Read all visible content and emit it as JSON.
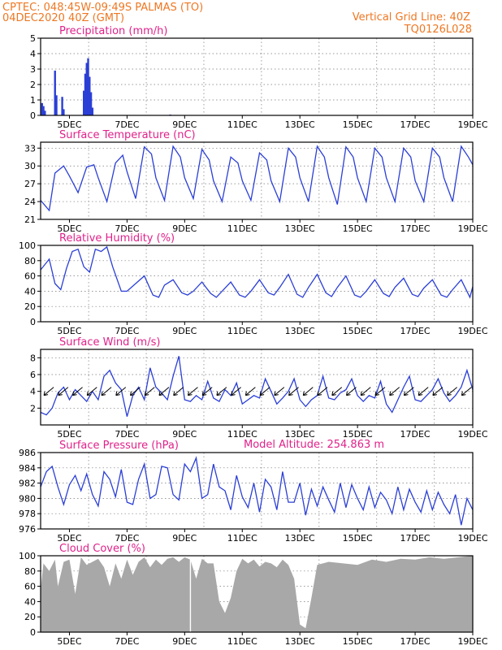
{
  "header": {
    "line1": "CPTEC:   048:45W-09:49S   PALMAS (TO)",
    "line2": "04DEC2020 40Z (GMT)",
    "grid_note": "Vertical Grid Line: 40Z",
    "code": "TQ0126L028"
  },
  "model_altitude": "Model Altitude: 254.863 m",
  "x_axis": {
    "range_days": [
      4.0,
      19.0
    ],
    "ticks": [
      {
        "label": "5DEC",
        "day": 5
      },
      {
        "label": "7DEC",
        "day": 7
      },
      {
        "label": "9DEC",
        "day": 9
      },
      {
        "label": "11DEC",
        "day": 11
      },
      {
        "label": "13DEC",
        "day": 13
      },
      {
        "label": "15DEC",
        "day": 15
      },
      {
        "label": "17DEC",
        "day": 17
      },
      {
        "label": "19DEC",
        "day": 19
      }
    ]
  },
  "chart_data": [
    {
      "type": "bar",
      "title": "Precipitation (mm/h)",
      "ylim": [
        0,
        5
      ],
      "yticks": [
        0,
        1,
        2,
        3,
        4,
        5
      ],
      "color": "#2b3fd6",
      "points": [
        [
          4.05,
          0.8
        ],
        [
          4.1,
          0.6
        ],
        [
          4.15,
          0.3
        ],
        [
          4.5,
          2.9
        ],
        [
          4.55,
          1.3
        ],
        [
          4.75,
          1.2
        ],
        [
          4.8,
          0.4
        ],
        [
          5.5,
          1.6
        ],
        [
          5.55,
          2.7
        ],
        [
          5.6,
          3.4
        ],
        [
          5.65,
          3.7
        ],
        [
          5.7,
          2.5
        ],
        [
          5.75,
          1.5
        ],
        [
          5.8,
          0.5
        ],
        [
          8.5,
          0.05
        ]
      ]
    },
    {
      "type": "line",
      "title": "Surface Temperature (nC)",
      "ylim": [
        21,
        34
      ],
      "yticks": [
        21,
        24,
        27,
        30,
        33
      ],
      "color": "#2b3fd6",
      "x": [
        4.0,
        4.3,
        4.5,
        4.8,
        5.0,
        5.3,
        5.6,
        5.85,
        6.0,
        6.3,
        6.6,
        6.85,
        7.0,
        7.3,
        7.6,
        7.85,
        8.0,
        8.3,
        8.6,
        8.85,
        9.0,
        9.3,
        9.6,
        9.85,
        10.0,
        10.3,
        10.6,
        10.85,
        11.0,
        11.3,
        11.6,
        11.85,
        12.0,
        12.3,
        12.6,
        12.85,
        13.0,
        13.3,
        13.6,
        13.85,
        14.0,
        14.3,
        14.6,
        14.85,
        15.0,
        15.3,
        15.6,
        15.85,
        16.0,
        16.3,
        16.6,
        16.85,
        17.0,
        17.3,
        17.6,
        17.85,
        18.0,
        18.3,
        18.6,
        18.85,
        19.0
      ],
      "y": [
        24.2,
        22.5,
        28.8,
        30.0,
        28.3,
        25.5,
        29.8,
        30.2,
        28.0,
        24.0,
        30.5,
        31.8,
        29.0,
        24.5,
        33.2,
        32.0,
        28.0,
        24.2,
        33.3,
        31.5,
        28.0,
        24.5,
        32.8,
        31.0,
        27.5,
        24.0,
        31.5,
        30.5,
        27.5,
        24.2,
        32.2,
        31.0,
        27.5,
        24.0,
        33.0,
        31.5,
        28.0,
        24.0,
        33.3,
        31.5,
        28.0,
        23.5,
        33.2,
        31.5,
        28.0,
        24.0,
        33.0,
        31.5,
        28.0,
        24.0,
        33.0,
        31.5,
        27.5,
        24.0,
        33.0,
        31.5,
        28.0,
        24.0,
        33.3,
        31.5,
        30.2
      ]
    },
    {
      "type": "line",
      "title": "Relative Humidity (%)",
      "ylim": [
        0,
        100
      ],
      "yticks": [
        0,
        20,
        40,
        60,
        80,
        100
      ],
      "color": "#2b3fd6",
      "x": [
        4.0,
        4.3,
        4.5,
        4.7,
        4.9,
        5.1,
        5.3,
        5.5,
        5.7,
        5.9,
        6.1,
        6.3,
        6.5,
        6.8,
        7.0,
        7.3,
        7.6,
        7.9,
        8.1,
        8.3,
        8.6,
        8.9,
        9.1,
        9.3,
        9.6,
        9.9,
        10.1,
        10.3,
        10.6,
        10.9,
        11.1,
        11.3,
        11.6,
        11.9,
        12.1,
        12.3,
        12.6,
        12.9,
        13.1,
        13.3,
        13.6,
        13.9,
        14.1,
        14.3,
        14.6,
        14.9,
        15.1,
        15.3,
        15.6,
        15.9,
        16.1,
        16.3,
        16.6,
        16.9,
        17.1,
        17.3,
        17.6,
        17.9,
        18.1,
        18.3,
        18.6,
        18.9,
        19.0
      ],
      "y": [
        68,
        82,
        50,
        42,
        70,
        92,
        95,
        72,
        65,
        95,
        92,
        98,
        72,
        40,
        40,
        50,
        60,
        35,
        32,
        48,
        55,
        38,
        35,
        40,
        52,
        37,
        32,
        40,
        52,
        35,
        32,
        40,
        55,
        38,
        35,
        45,
        62,
        36,
        32,
        45,
        62,
        38,
        33,
        45,
        60,
        35,
        32,
        40,
        55,
        37,
        33,
        45,
        57,
        36,
        33,
        44,
        55,
        35,
        32,
        42,
        55,
        32,
        46
      ]
    },
    {
      "type": "line",
      "title": "Surface Wind (m/s)",
      "ylim": [
        0,
        9
      ],
      "yticks": [
        2,
        4,
        6,
        8
      ],
      "color": "#2b3fd6",
      "x": [
        4.0,
        4.2,
        4.4,
        4.6,
        4.8,
        5.0,
        5.2,
        5.4,
        5.6,
        5.8,
        6.0,
        6.2,
        6.4,
        6.6,
        6.8,
        7.0,
        7.2,
        7.4,
        7.6,
        7.8,
        8.0,
        8.2,
        8.4,
        8.6,
        8.8,
        9.0,
        9.2,
        9.4,
        9.6,
        9.8,
        10.0,
        10.2,
        10.4,
        10.6,
        10.8,
        11.0,
        11.2,
        11.4,
        11.6,
        11.8,
        12.0,
        12.2,
        12.4,
        12.6,
        12.8,
        13.0,
        13.2,
        13.4,
        13.6,
        13.8,
        14.0,
        14.2,
        14.4,
        14.6,
        14.8,
        15.0,
        15.2,
        15.4,
        15.6,
        15.8,
        16.0,
        16.2,
        16.4,
        16.6,
        16.8,
        17.0,
        17.2,
        17.4,
        17.6,
        17.8,
        18.0,
        18.2,
        18.4,
        18.6,
        18.8,
        19.0
      ],
      "y": [
        1.5,
        1.2,
        2.0,
        3.8,
        4.5,
        3.0,
        4.2,
        3.5,
        2.8,
        4.0,
        3.0,
        5.8,
        6.5,
        5.0,
        4.2,
        1.0,
        3.5,
        4.5,
        3.0,
        6.8,
        4.5,
        3.8,
        3.0,
        5.8,
        8.2,
        3.0,
        2.8,
        3.5,
        3.0,
        5.2,
        3.2,
        2.8,
        4.2,
        3.5,
        5.0,
        2.5,
        3.0,
        3.5,
        3.2,
        5.5,
        4.0,
        2.5,
        3.2,
        4.0,
        5.5,
        3.0,
        2.2,
        3.0,
        3.5,
        5.8,
        3.2,
        3.0,
        3.8,
        4.2,
        5.5,
        3.5,
        2.8,
        3.5,
        3.2,
        5.2,
        2.5,
        1.5,
        3.0,
        4.5,
        5.8,
        3.0,
        2.8,
        3.5,
        4.2,
        5.5,
        3.8,
        2.8,
        3.5,
        4.5,
        6.5,
        4.2
      ]
    },
    {
      "type": "line",
      "title": "Surface Pressure (hPa)",
      "ylim": [
        976,
        986
      ],
      "yticks": [
        976,
        978,
        980,
        982,
        984,
        986
      ],
      "color": "#2b3fd6",
      "x": [
        4.0,
        4.2,
        4.4,
        4.6,
        4.8,
        5.0,
        5.2,
        5.4,
        5.6,
        5.8,
        6.0,
        6.2,
        6.4,
        6.6,
        6.8,
        7.0,
        7.2,
        7.4,
        7.6,
        7.8,
        8.0,
        8.2,
        8.4,
        8.6,
        8.8,
        9.0,
        9.2,
        9.4,
        9.6,
        9.8,
        10.0,
        10.2,
        10.4,
        10.6,
        10.8,
        11.0,
        11.2,
        11.4,
        11.6,
        11.8,
        12.0,
        12.2,
        12.4,
        12.6,
        12.8,
        13.0,
        13.2,
        13.4,
        13.6,
        13.8,
        14.0,
        14.2,
        14.4,
        14.6,
        14.8,
        15.0,
        15.2,
        15.4,
        15.6,
        15.8,
        16.0,
        16.2,
        16.4,
        16.6,
        16.8,
        17.0,
        17.2,
        17.4,
        17.6,
        17.8,
        18.0,
        18.2,
        18.4,
        18.6,
        18.8,
        19.0
      ],
      "y": [
        981.5,
        983.5,
        984.2,
        981.5,
        979.2,
        981.8,
        983.0,
        981.0,
        983.2,
        980.5,
        979.0,
        983.5,
        982.5,
        980.2,
        983.8,
        979.5,
        979.2,
        982.5,
        984.5,
        980.0,
        980.5,
        984.2,
        984.0,
        980.5,
        979.8,
        984.5,
        983.5,
        985.3,
        980.0,
        980.5,
        984.5,
        981.5,
        981.0,
        978.5,
        983.0,
        980.2,
        978.8,
        982.0,
        978.2,
        982.5,
        981.5,
        978.5,
        983.5,
        979.5,
        979.5,
        982.0,
        977.8,
        981.2,
        979.0,
        981.5,
        979.8,
        978.2,
        982.0,
        978.8,
        981.8,
        980.0,
        978.5,
        981.5,
        978.8,
        980.8,
        979.8,
        978.0,
        981.5,
        978.5,
        981.2,
        979.5,
        978.2,
        981.0,
        978.5,
        980.8,
        979.2,
        978.0,
        980.5,
        976.5,
        980.0,
        978.5
      ]
    },
    {
      "type": "area",
      "title": "Cloud Cover (%)",
      "ylim": [
        0,
        100
      ],
      "yticks": [
        0,
        20,
        40,
        60,
        80,
        100
      ],
      "color": "#a8a8a8",
      "x": [
        4.0,
        4.1,
        4.3,
        4.5,
        4.6,
        4.8,
        5.0,
        5.2,
        5.4,
        5.6,
        5.8,
        6.0,
        6.2,
        6.4,
        6.6,
        6.8,
        7.0,
        7.2,
        7.4,
        7.6,
        7.8,
        8.0,
        8.2,
        8.4,
        8.6,
        8.8,
        9.0,
        9.2,
        9.4,
        9.6,
        9.8,
        10.0,
        10.2,
        10.4,
        10.6,
        10.8,
        11.0,
        11.2,
        11.4,
        11.6,
        11.8,
        12.0,
        12.2,
        12.4,
        12.6,
        12.8,
        13.0,
        13.2,
        13.4,
        13.6,
        13.8,
        14.0,
        14.5,
        15.0,
        15.5,
        16.0,
        16.5,
        17.0,
        17.5,
        18.0,
        18.5,
        19.0
      ],
      "y": [
        55,
        90,
        80,
        95,
        60,
        92,
        95,
        50,
        98,
        88,
        92,
        96,
        85,
        60,
        90,
        70,
        95,
        75,
        92,
        98,
        85,
        95,
        88,
        96,
        98,
        92,
        98,
        95,
        70,
        96,
        90,
        90,
        40,
        25,
        45,
        80,
        96,
        90,
        95,
        86,
        92,
        90,
        85,
        95,
        88,
        70,
        10,
        5,
        45,
        88,
        90,
        92,
        90,
        88,
        95,
        92,
        96,
        95,
        98,
        96,
        98,
        100
      ]
    }
  ]
}
